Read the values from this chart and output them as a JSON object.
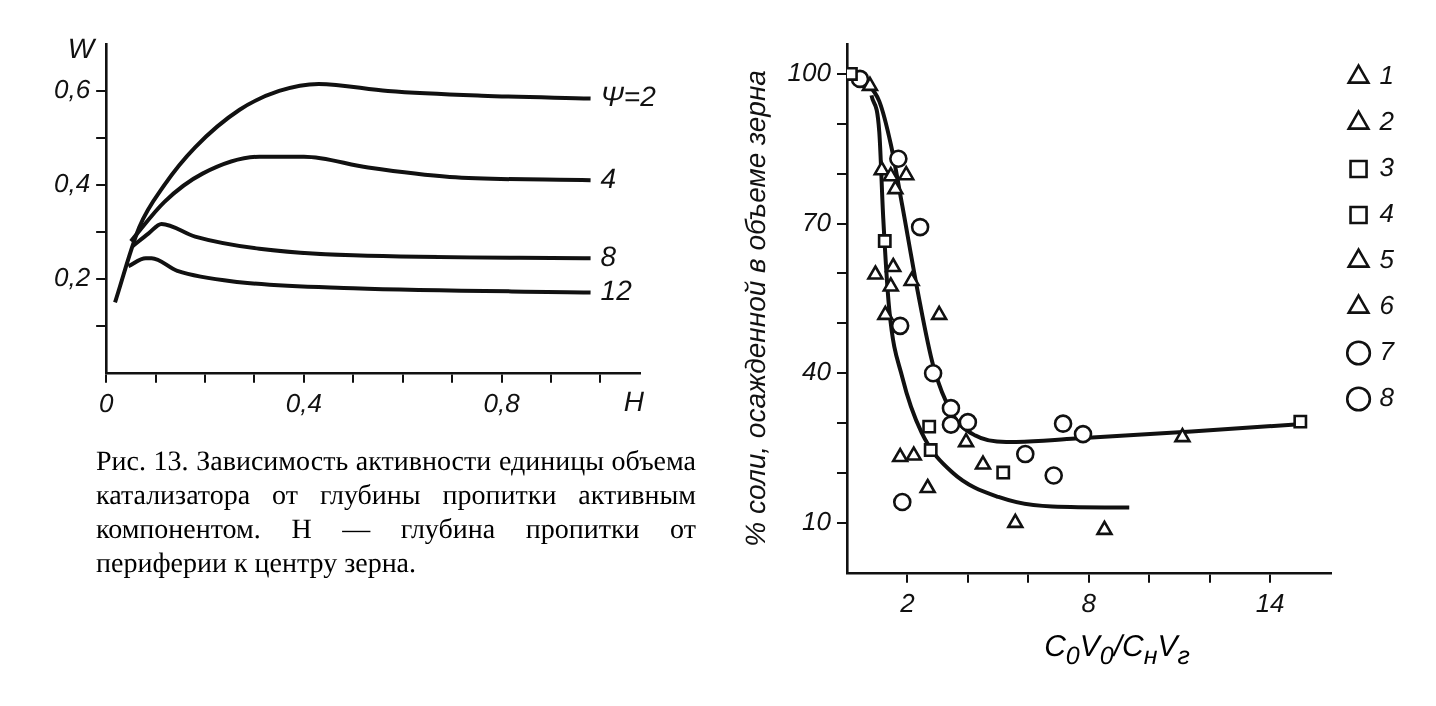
{
  "chart_data": [
    {
      "type": "line",
      "xlabel": "H",
      "ylabel": "W",
      "xlim": [
        0,
        1.08
      ],
      "ylim": [
        0,
        0.7
      ],
      "xticks": [
        {
          "value": 0,
          "label": "0"
        },
        {
          "value": 0.1,
          "label": null
        },
        {
          "value": 0.2,
          "label": null
        },
        {
          "value": 0.3,
          "label": null
        },
        {
          "value": 0.4,
          "label": "0,4"
        },
        {
          "value": 0.5,
          "label": null
        },
        {
          "value": 0.6,
          "label": null
        },
        {
          "value": 0.7,
          "label": null
        },
        {
          "value": 0.8,
          "label": "0,8"
        },
        {
          "value": 0.9,
          "label": null
        },
        {
          "value": 1.0,
          "label": null
        }
      ],
      "yticks": [
        {
          "value": 0.1,
          "label": null
        },
        {
          "value": 0.2,
          "label": "0,2"
        },
        {
          "value": 0.3,
          "label": null
        },
        {
          "value": 0.4,
          "label": "0,4"
        },
        {
          "value": 0.5,
          "label": null
        },
        {
          "value": 0.6,
          "label": "0,6"
        }
      ],
      "grid": false,
      "legend": false,
      "marker": "none",
      "line_style": "solid",
      "annotations": [
        "Рис. 13. Зависимость активности единицы объема катализатора от глубины пропитки активным компонентом. H — глубина пропитки от периферии к центру зерна."
      ],
      "series": [
        {
          "name": "Ψ=2",
          "color": "#111111",
          "x": [
            0.018,
            0.067,
            0.118,
            0.18,
            0.27,
            0.35,
            0.43,
            0.57,
            0.76,
            0.98
          ],
          "values": [
            0.15,
            0.31,
            0.4,
            0.48,
            0.56,
            0.6,
            0.615,
            0.6,
            0.59,
            0.584
          ]
        },
        {
          "name": "4",
          "color": "#111111",
          "x": [
            0.05,
            0.118,
            0.195,
            0.31,
            0.4,
            0.53,
            0.695,
            0.98
          ],
          "values": [
            0.28,
            0.364,
            0.424,
            0.46,
            0.46,
            0.437,
            0.417,
            0.41
          ]
        },
        {
          "name": "8",
          "color": "#111111",
          "x": [
            0.054,
            0.086,
            0.112,
            0.18,
            0.31,
            0.5,
            0.98
          ],
          "values": [
            0.27,
            0.297,
            0.317,
            0.29,
            0.264,
            0.25,
            0.244
          ]
        },
        {
          "name": "12",
          "color": "#111111",
          "x": [
            0.045,
            0.08,
            0.092,
            0.144,
            0.27,
            0.5,
            0.98
          ],
          "values": [
            0.227,
            0.244,
            0.244,
            0.217,
            0.193,
            0.18,
            0.171
          ]
        }
      ]
    },
    {
      "type": "scatter",
      "xlabel": "C$_{0}$V$_{0}$/C$_{н}$V$_{г}$",
      "ylabel": "% соли, осажденной в объеме зерна",
      "xlim": [
        0,
        16
      ],
      "ylim": [
        0,
        106
      ],
      "xticks": [
        {
          "value": 2,
          "label": "2"
        },
        {
          "value": 4,
          "label": null
        },
        {
          "value": 6,
          "label": null
        },
        {
          "value": 8,
          "label": "8"
        },
        {
          "value": 10,
          "label": null
        },
        {
          "value": 12,
          "label": null
        },
        {
          "value": 14,
          "label": "14"
        }
      ],
      "yticks": [
        {
          "value": 10,
          "label": "10"
        },
        {
          "value": 20,
          "label": null
        },
        {
          "value": 30,
          "label": null
        },
        {
          "value": 40,
          "label": "40"
        },
        {
          "value": 50,
          "label": null
        },
        {
          "value": 60,
          "label": null
        },
        {
          "value": 70,
          "label": "70"
        },
        {
          "value": 80,
          "label": null
        },
        {
          "value": 90,
          "label": null
        },
        {
          "value": 100,
          "label": "100"
        }
      ],
      "grid": false,
      "legend": "right",
      "series": [
        {
          "name": "1",
          "color": "#111111",
          "marker": "triangle",
          "x": [
            0.76,
            1.96,
            1.53,
            3.05,
            3.94,
            4.5,
            2.21
          ],
          "values": [
            97.6,
            79.7,
            61.3,
            51.7,
            26.2,
            21.7,
            23.5
          ]
        },
        {
          "name": "2",
          "color": "#111111",
          "marker": "triangle",
          "x": [
            1.45,
            1.6,
            0.94,
            1.76
          ],
          "values": [
            79.5,
            76.9,
            59.8,
            23.2
          ]
        },
        {
          "name": "3",
          "color": "#111111",
          "marker": "square",
          "x": [
            0.13,
            2.77,
            5.17,
            15.0
          ],
          "values": [
            100,
            24.6,
            20.1,
            30.3
          ]
        },
        {
          "name": "4",
          "color": "#111111",
          "marker": "square",
          "x": [
            1.25,
            2.72
          ],
          "values": [
            66.5,
            29.3
          ]
        },
        {
          "name": "5",
          "color": "#111111",
          "marker": "triangle",
          "x": [
            1.15,
            2.14,
            1.27,
            2.67,
            5.57,
            8.52,
            11.1
          ],
          "values": [
            80.7,
            58.5,
            51.7,
            17.0,
            10,
            8.6,
            27.2
          ]
        },
        {
          "name": "6",
          "color": "#111111",
          "marker": "triangle",
          "x": [
            1.45
          ],
          "values": [
            57.4
          ]
        },
        {
          "name": "7",
          "color": "#111111",
          "marker": "circle",
          "x": [
            0.43,
            2.42,
            1.76,
            2.85,
            3.44,
            3.44,
            4.0,
            5.9,
            6.84,
            7.15,
            7.81,
            1.83
          ],
          "values": [
            99,
            69.3,
            49.5,
            40,
            33,
            29.7,
            30.2,
            23.8,
            19.5,
            29.9,
            27.8,
            14.2
          ]
        },
        {
          "name": "8",
          "color": "#111111",
          "marker": "circle",
          "x": [
            1.7
          ],
          "values": [
            83
          ]
        },
        {
          "type": "line",
          "color": "#111111",
          "marker": "none",
          "x": [
            0.56,
            1.07,
            1.45,
            1.83,
            2.34,
            2.85,
            3.49,
            4.25,
            5.27,
            7.56,
            11.4,
            15.2
          ],
          "values": [
            98.8,
            94.5,
            85.9,
            73.6,
            56.4,
            41.6,
            31.8,
            27.5,
            26.2,
            26.9,
            28.3,
            29.9
          ]
        },
        {
          "type": "line",
          "color": "#111111",
          "marker": "none",
          "x": [
            0.81,
            1.07,
            1.2,
            1.4,
            1.83,
            2.47,
            3.49,
            5.01,
            6.79,
            9.34
          ],
          "values": [
            95.7,
            88.3,
            71.1,
            52.7,
            39.2,
            28.1,
            20.1,
            15.2,
            13.3,
            13.1
          ]
        }
      ]
    }
  ]
}
